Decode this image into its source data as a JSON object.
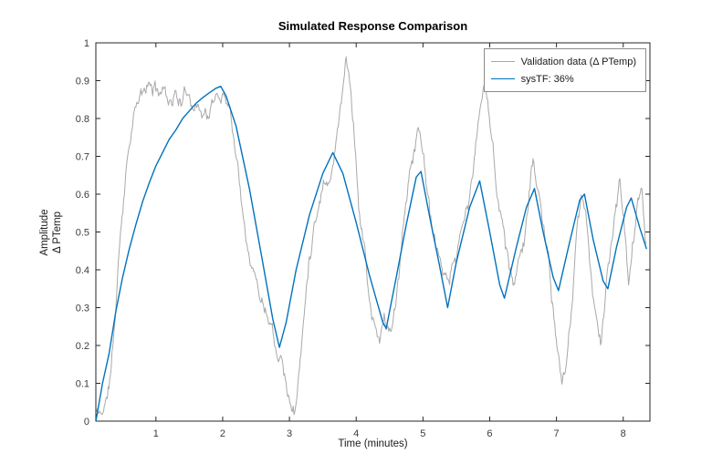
{
  "chart_data": {
    "type": "line",
    "title": "Simulated Response Comparison",
    "xlabel": "Time (minutes)",
    "ylabel_line1": "Amplitude",
    "ylabel_line2": "Δ PTemp",
    "xlim": [
      0.1,
      8.4
    ],
    "ylim": [
      0,
      1
    ],
    "xticks": [
      1,
      2,
      3,
      4,
      5,
      6,
      7,
      8
    ],
    "xtick_labels": [
      "1",
      "2",
      "3",
      "4",
      "5",
      "6",
      "7",
      "8"
    ],
    "yticks": [
      0,
      0.1,
      0.2,
      0.3,
      0.4,
      0.5,
      0.6,
      0.7,
      0.8,
      0.9,
      1
    ],
    "ytick_labels": [
      "0",
      "0.1",
      "0.2",
      "0.3",
      "0.4",
      "0.5",
      "0.6",
      "0.7",
      "0.8",
      "0.9",
      "1"
    ],
    "grid": false,
    "box": true,
    "axis_color": "#262626",
    "tick_label_color": "#3b3b3b",
    "legend_position": "top-right",
    "series": [
      {
        "name": "Validation data (Δ PTemp)",
        "color": "#a9a9a9",
        "width": 1,
        "noise": 0.014,
        "noise_seed": 11,
        "points": [
          [
            0.1,
            0.02
          ],
          [
            0.18,
            0.02
          ],
          [
            0.25,
            0.05
          ],
          [
            0.33,
            0.13
          ],
          [
            0.4,
            0.3
          ],
          [
            0.47,
            0.5
          ],
          [
            0.55,
            0.67
          ],
          [
            0.62,
            0.78
          ],
          [
            0.7,
            0.84
          ],
          [
            0.8,
            0.86
          ],
          [
            0.9,
            0.88
          ],
          [
            1.0,
            0.87
          ],
          [
            1.1,
            0.88
          ],
          [
            1.2,
            0.86
          ],
          [
            1.3,
            0.87
          ],
          [
            1.4,
            0.85
          ],
          [
            1.5,
            0.87
          ],
          [
            1.6,
            0.85
          ],
          [
            1.7,
            0.83
          ],
          [
            1.8,
            0.82
          ],
          [
            1.9,
            0.85
          ],
          [
            2.0,
            0.87
          ],
          [
            2.1,
            0.85
          ],
          [
            2.18,
            0.75
          ],
          [
            2.25,
            0.65
          ],
          [
            2.35,
            0.52
          ],
          [
            2.45,
            0.42
          ],
          [
            2.55,
            0.36
          ],
          [
            2.65,
            0.31
          ],
          [
            2.72,
            0.3
          ],
          [
            2.8,
            0.22
          ],
          [
            2.88,
            0.21
          ],
          [
            2.95,
            0.13
          ],
          [
            3.02,
            0.05
          ],
          [
            3.08,
            0.04
          ],
          [
            3.15,
            0.14
          ],
          [
            3.22,
            0.28
          ],
          [
            3.3,
            0.44
          ],
          [
            3.38,
            0.55
          ],
          [
            3.45,
            0.6
          ],
          [
            3.52,
            0.66
          ],
          [
            3.58,
            0.64
          ],
          [
            3.65,
            0.7
          ],
          [
            3.72,
            0.77
          ],
          [
            3.8,
            0.9
          ],
          [
            3.85,
            0.96
          ],
          [
            3.9,
            0.92
          ],
          [
            3.97,
            0.78
          ],
          [
            4.05,
            0.56
          ],
          [
            4.12,
            0.47
          ],
          [
            4.2,
            0.32
          ],
          [
            4.28,
            0.24
          ],
          [
            4.35,
            0.2
          ],
          [
            4.42,
            0.27
          ],
          [
            4.5,
            0.23
          ],
          [
            4.58,
            0.28
          ],
          [
            4.65,
            0.38
          ],
          [
            4.72,
            0.52
          ],
          [
            4.8,
            0.66
          ],
          [
            4.88,
            0.74
          ],
          [
            4.93,
            0.77
          ],
          [
            5.0,
            0.72
          ],
          [
            5.08,
            0.6
          ],
          [
            5.15,
            0.48
          ],
          [
            5.25,
            0.4
          ],
          [
            5.33,
            0.36
          ],
          [
            5.4,
            0.33
          ],
          [
            5.48,
            0.42
          ],
          [
            5.55,
            0.47
          ],
          [
            5.62,
            0.52
          ],
          [
            5.7,
            0.58
          ],
          [
            5.78,
            0.7
          ],
          [
            5.85,
            0.82
          ],
          [
            5.9,
            0.88
          ],
          [
            5.97,
            0.84
          ],
          [
            6.05,
            0.72
          ],
          [
            6.12,
            0.6
          ],
          [
            6.2,
            0.52
          ],
          [
            6.28,
            0.44
          ],
          [
            6.35,
            0.36
          ],
          [
            6.42,
            0.4
          ],
          [
            6.5,
            0.5
          ],
          [
            6.58,
            0.58
          ],
          [
            6.65,
            0.7
          ],
          [
            6.72,
            0.62
          ],
          [
            6.8,
            0.5
          ],
          [
            6.88,
            0.42
          ],
          [
            6.95,
            0.28
          ],
          [
            7.02,
            0.14
          ],
          [
            7.08,
            0.07
          ],
          [
            7.15,
            0.15
          ],
          [
            7.22,
            0.28
          ],
          [
            7.3,
            0.47
          ],
          [
            7.38,
            0.58
          ],
          [
            7.45,
            0.52
          ],
          [
            7.52,
            0.4
          ],
          [
            7.6,
            0.26
          ],
          [
            7.66,
            0.19
          ],
          [
            7.72,
            0.3
          ],
          [
            7.8,
            0.44
          ],
          [
            7.88,
            0.55
          ],
          [
            7.95,
            0.62
          ],
          [
            8.02,
            0.48
          ],
          [
            8.08,
            0.37
          ],
          [
            8.15,
            0.47
          ],
          [
            8.22,
            0.56
          ],
          [
            8.28,
            0.6
          ],
          [
            8.35,
            0.47
          ]
        ]
      },
      {
        "name": "sysTF: 36%",
        "color": "#0072bd",
        "width": 1.4,
        "noise": 0,
        "noise_seed": 1,
        "points": [
          [
            0.1,
            0.0
          ],
          [
            0.15,
            0.05
          ],
          [
            0.2,
            0.1
          ],
          [
            0.25,
            0.14
          ],
          [
            0.3,
            0.18
          ],
          [
            0.4,
            0.29
          ],
          [
            0.5,
            0.38
          ],
          [
            0.6,
            0.455
          ],
          [
            0.7,
            0.52
          ],
          [
            0.8,
            0.58
          ],
          [
            0.9,
            0.63
          ],
          [
            1.0,
            0.675
          ],
          [
            1.1,
            0.71
          ],
          [
            1.2,
            0.745
          ],
          [
            1.3,
            0.77
          ],
          [
            1.4,
            0.8
          ],
          [
            1.5,
            0.82
          ],
          [
            1.6,
            0.84
          ],
          [
            1.7,
            0.855
          ],
          [
            1.8,
            0.868
          ],
          [
            1.9,
            0.88
          ],
          [
            1.97,
            0.885
          ],
          [
            2.05,
            0.86
          ],
          [
            2.2,
            0.78
          ],
          [
            2.4,
            0.615
          ],
          [
            2.6,
            0.42
          ],
          [
            2.75,
            0.27
          ],
          [
            2.85,
            0.195
          ],
          [
            2.95,
            0.26
          ],
          [
            3.1,
            0.4
          ],
          [
            3.3,
            0.545
          ],
          [
            3.5,
            0.655
          ],
          [
            3.65,
            0.71
          ],
          [
            3.8,
            0.655
          ],
          [
            4.0,
            0.525
          ],
          [
            4.2,
            0.385
          ],
          [
            4.4,
            0.26
          ],
          [
            4.45,
            0.245
          ],
          [
            4.6,
            0.38
          ],
          [
            4.75,
            0.52
          ],
          [
            4.9,
            0.645
          ],
          [
            4.97,
            0.66
          ],
          [
            5.1,
            0.54
          ],
          [
            5.25,
            0.41
          ],
          [
            5.37,
            0.3
          ],
          [
            5.5,
            0.42
          ],
          [
            5.7,
            0.565
          ],
          [
            5.85,
            0.635
          ],
          [
            6.0,
            0.5
          ],
          [
            6.15,
            0.36
          ],
          [
            6.22,
            0.325
          ],
          [
            6.4,
            0.46
          ],
          [
            6.55,
            0.565
          ],
          [
            6.67,
            0.615
          ],
          [
            6.8,
            0.5
          ],
          [
            6.95,
            0.38
          ],
          [
            7.03,
            0.345
          ],
          [
            7.2,
            0.475
          ],
          [
            7.35,
            0.585
          ],
          [
            7.42,
            0.6
          ],
          [
            7.55,
            0.48
          ],
          [
            7.7,
            0.37
          ],
          [
            7.77,
            0.35
          ],
          [
            7.9,
            0.46
          ],
          [
            8.05,
            0.565
          ],
          [
            8.12,
            0.59
          ],
          [
            8.25,
            0.51
          ],
          [
            8.35,
            0.455
          ]
        ]
      }
    ]
  }
}
